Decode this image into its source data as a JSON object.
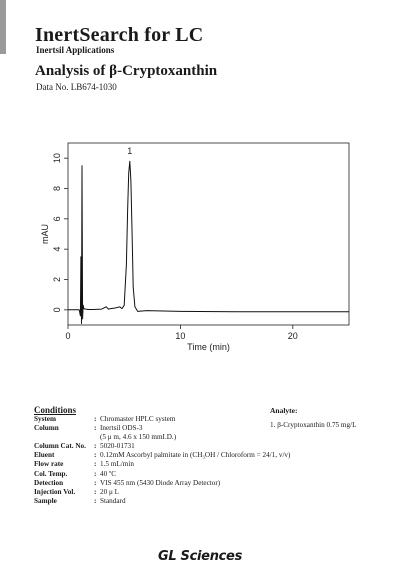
{
  "header": {
    "brand": "InertSearch for LC",
    "subtitle": "Inertsil Applications",
    "title": "Analysis of β-Cryptoxanthin",
    "data_no": "Data No. LB674-1030"
  },
  "chart_data": {
    "type": "line",
    "xlabel": "Time (min)",
    "ylabel": "mAU",
    "xlim": [
      0,
      25
    ],
    "ylim": [
      -1,
      11
    ],
    "xticks": [
      0,
      10,
      20
    ],
    "yticks": [
      0,
      2,
      4,
      6,
      8,
      10
    ],
    "peak_labels": [
      {
        "label": "1",
        "x": 5.5,
        "y": 9.8
      }
    ],
    "series": [
      {
        "color": "#111111",
        "x": [
          0,
          1.0,
          1.1,
          1.15,
          1.2,
          1.25,
          1.3,
          1.35,
          1.4,
          1.5,
          1.6,
          1.8,
          2.2,
          3.0,
          3.4,
          3.6,
          3.8,
          4.2,
          4.6,
          4.8,
          5.0,
          5.2,
          5.3,
          5.4,
          5.5,
          5.6,
          5.7,
          5.8,
          5.95,
          6.2,
          7,
          10,
          15,
          20,
          25
        ],
        "y": [
          0,
          0,
          -0.4,
          3.5,
          -0.9,
          9.5,
          -0.6,
          0.3,
          0.1,
          0.05,
          0.05,
          0.02,
          0.02,
          0.05,
          0.2,
          0.05,
          0.08,
          0.12,
          0.2,
          0.08,
          0.3,
          3.0,
          6.5,
          9.0,
          9.8,
          8.5,
          5.0,
          1.5,
          0.2,
          -0.1,
          -0.05,
          -0.1,
          -0.12,
          -0.12,
          -0.13
        ]
      }
    ]
  },
  "conditions": {
    "heading": "Conditions",
    "rows": [
      {
        "key": "System",
        "colon": ":",
        "value": "Chromaster HPLC system"
      },
      {
        "key": "Column",
        "colon": ":",
        "value": "Inertsil ODS-3"
      },
      {
        "key": "",
        "colon": "",
        "value": "(5 μ m, 4.6 x 150 mmI.D.)"
      },
      {
        "key": "Column Cat. No.",
        "colon": ":",
        "value": "5020-01731"
      },
      {
        "key": "Eluent",
        "colon": ":",
        "value": "0.12mM Ascorbyl palmitate in (CH₃OH / Chloroform = 24/1, v/v)"
      },
      {
        "key": "Flow rate",
        "colon": ":",
        "value": "1.5 mL/min"
      },
      {
        "key": "Col. Temp.",
        "colon": ":",
        "value": "40 ºC"
      },
      {
        "key": "Detection",
        "colon": ":",
        "value": "VIS 455 nm (5430 Diode Array Detector)"
      },
      {
        "key": "Injection Vol.",
        "colon": ":",
        "value": "20 μ L"
      },
      {
        "key": "Sample",
        "colon": ":",
        "value": "Standard"
      }
    ]
  },
  "analyte": {
    "heading": "Analyte:",
    "items": [
      "1. β-Cryptoxanthin  0.75 mg/L"
    ]
  },
  "footer": {
    "logo": "GL Sciences"
  }
}
